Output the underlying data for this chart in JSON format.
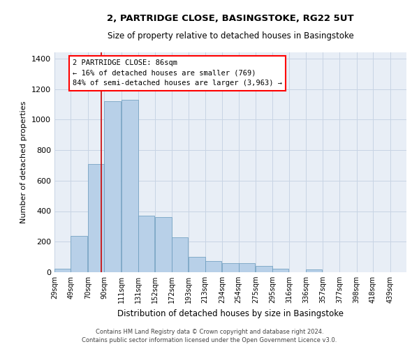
{
  "title": "2, PARTRIDGE CLOSE, BASINGSTOKE, RG22 5UT",
  "subtitle": "Size of property relative to detached houses in Basingstoke",
  "xlabel": "Distribution of detached houses by size in Basingstoke",
  "ylabel": "Number of detached properties",
  "footer_line1": "Contains HM Land Registry data © Crown copyright and database right 2024.",
  "footer_line2": "Contains public sector information licensed under the Open Government Licence v3.0.",
  "annotation_line1": "2 PARTRIDGE CLOSE: 86sqm",
  "annotation_line2": "← 16% of detached houses are smaller (769)",
  "annotation_line3": "84% of semi-detached houses are larger (3,963) →",
  "bar_color": "#b8d0e8",
  "bar_edge_color": "#6699bb",
  "grid_color": "#c8d4e4",
  "background_color": "#e8eef6",
  "vline_color": "#cc0000",
  "bin_labels": [
    "29sqm",
    "49sqm",
    "70sqm",
    "90sqm",
    "111sqm",
    "131sqm",
    "152sqm",
    "172sqm",
    "193sqm",
    "213sqm",
    "234sqm",
    "254sqm",
    "275sqm",
    "295sqm",
    "316sqm",
    "336sqm",
    "357sqm",
    "377sqm",
    "398sqm",
    "418sqm",
    "439sqm"
  ],
  "bar_heights": [
    25,
    240,
    710,
    1120,
    1130,
    370,
    360,
    230,
    100,
    75,
    60,
    60,
    40,
    25,
    0,
    20,
    0,
    0,
    0,
    0,
    0
  ],
  "vline_x": 86,
  "bin_edges": [
    29,
    49,
    70,
    90,
    111,
    131,
    152,
    172,
    193,
    213,
    234,
    254,
    275,
    295,
    316,
    336,
    357,
    377,
    398,
    418,
    439
  ],
  "bin_width": 20,
  "ylim": [
    0,
    1440
  ],
  "yticks": [
    0,
    200,
    400,
    600,
    800,
    1000,
    1200,
    1400
  ]
}
